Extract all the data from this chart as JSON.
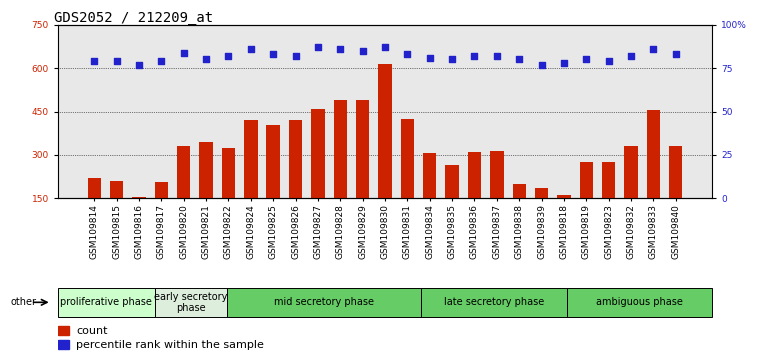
{
  "title": "GDS2052 / 212209_at",
  "samples": [
    "GSM109814",
    "GSM109815",
    "GSM109816",
    "GSM109817",
    "GSM109820",
    "GSM109821",
    "GSM109822",
    "GSM109824",
    "GSM109825",
    "GSM109826",
    "GSM109827",
    "GSM109828",
    "GSM109829",
    "GSM109830",
    "GSM109831",
    "GSM109834",
    "GSM109835",
    "GSM109836",
    "GSM109837",
    "GSM109838",
    "GSM109839",
    "GSM109818",
    "GSM109819",
    "GSM109823",
    "GSM109832",
    "GSM109833",
    "GSM109840"
  ],
  "counts": [
    220,
    210,
    155,
    205,
    330,
    345,
    325,
    420,
    405,
    420,
    460,
    490,
    490,
    615,
    425,
    305,
    265,
    310,
    315,
    200,
    185,
    160,
    275,
    275,
    330,
    455,
    330
  ],
  "percentile_ranks": [
    79,
    79,
    77,
    79,
    84,
    80,
    82,
    86,
    83,
    82,
    87,
    86,
    85,
    87,
    83,
    81,
    80,
    82,
    82,
    80,
    77,
    78,
    80,
    79,
    82,
    86,
    83
  ],
  "phases": [
    {
      "label": "proliferative phase",
      "start": 0,
      "end": 4,
      "color": "#ccffcc"
    },
    {
      "label": "early secretory\nphase",
      "start": 4,
      "end": 7,
      "color": "#ddeedd"
    },
    {
      "label": "mid secretory phase",
      "start": 7,
      "end": 15,
      "color": "#66cc66"
    },
    {
      "label": "late secretory phase",
      "start": 15,
      "end": 21,
      "color": "#66cc66"
    },
    {
      "label": "ambiguous phase",
      "start": 21,
      "end": 27,
      "color": "#66cc66"
    }
  ],
  "ylim_left": [
    150,
    750
  ],
  "ylim_right": [
    0,
    100
  ],
  "yticks_left": [
    150,
    300,
    450,
    600,
    750
  ],
  "yticks_right": [
    0,
    25,
    50,
    75,
    100
  ],
  "bar_color": "#cc2200",
  "dot_color": "#2222cc",
  "bg_color": "#e8e8e8",
  "title_fontsize": 10,
  "tick_fontsize": 6.5,
  "phase_label_fontsize": 7
}
